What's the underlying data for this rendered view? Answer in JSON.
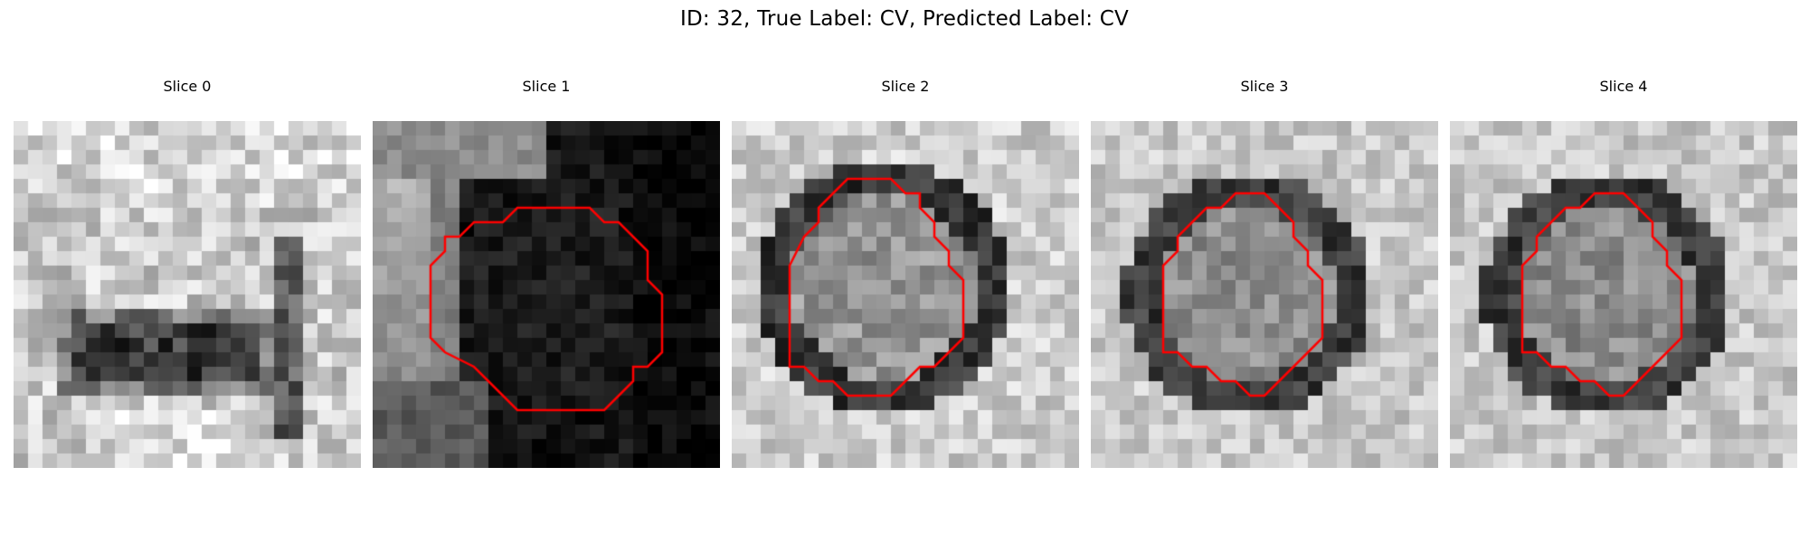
{
  "figure": {
    "title": "ID: 32, True Label: CV, Predicted Label: CV"
  },
  "slices": [
    {
      "label": "Slice 0",
      "has_contour": false
    },
    {
      "label": "Slice 1",
      "has_contour": true
    },
    {
      "label": "Slice 2",
      "has_contour": true
    },
    {
      "label": "Slice 3",
      "has_contour": true
    },
    {
      "label": "Slice 4",
      "has_contour": true
    }
  ],
  "colors": {
    "contour": "#ff0000",
    "background": "#ffffff"
  }
}
